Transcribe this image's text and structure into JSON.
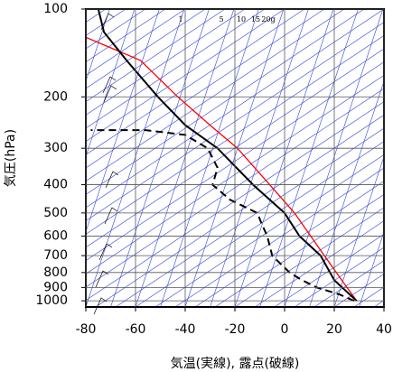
{
  "chart_data": {
    "type": "skewt",
    "x_label": "気温(実線), 露点(破線)",
    "y_label": "気圧(hPa)",
    "xlim": [
      -80,
      40
    ],
    "xticks": [
      -80,
      -60,
      -40,
      -20,
      0,
      20,
      40
    ],
    "ylim": [
      1050,
      100
    ],
    "yticks": [
      100,
      200,
      300,
      400,
      500,
      600,
      700,
      800,
      900,
      1000
    ],
    "log_y": true,
    "grid": true,
    "mixing_ratio_labels": [
      "1",
      "5",
      "10",
      "15",
      "20g"
    ],
    "series": [
      {
        "color": "#ff0000",
        "dash": false,
        "x": [
          29,
          23,
          16,
          4,
          -6,
          -19,
          -30,
          -43,
          -58,
          -80
        ],
        "y": [
          1000,
          850,
          700,
          500,
          400,
          300,
          250,
          200,
          150,
          125
        ]
      },
      {
        "color": "#000000",
        "dash": false,
        "x": [
          29,
          20,
          14.5,
          6,
          0,
          -12.7,
          -27,
          -40,
          -51,
          -63.6,
          -72.7,
          -75
        ],
        "y": [
          1000,
          850,
          700,
          600,
          500,
          400,
          300,
          250,
          200,
          150,
          120,
          100
        ]
      },
      {
        "color": "#000000",
        "dash": true,
        "x": [
          28,
          22,
          13,
          7,
          2,
          -5,
          -7,
          -9,
          -11,
          -22,
          -29,
          -27,
          -31,
          -40,
          -56,
          -78
        ],
        "y": [
          1000,
          950,
          900,
          850,
          800,
          700,
          600,
          550,
          500,
          450,
          400,
          350,
          300,
          270,
          260,
          260
        ]
      }
    ]
  }
}
